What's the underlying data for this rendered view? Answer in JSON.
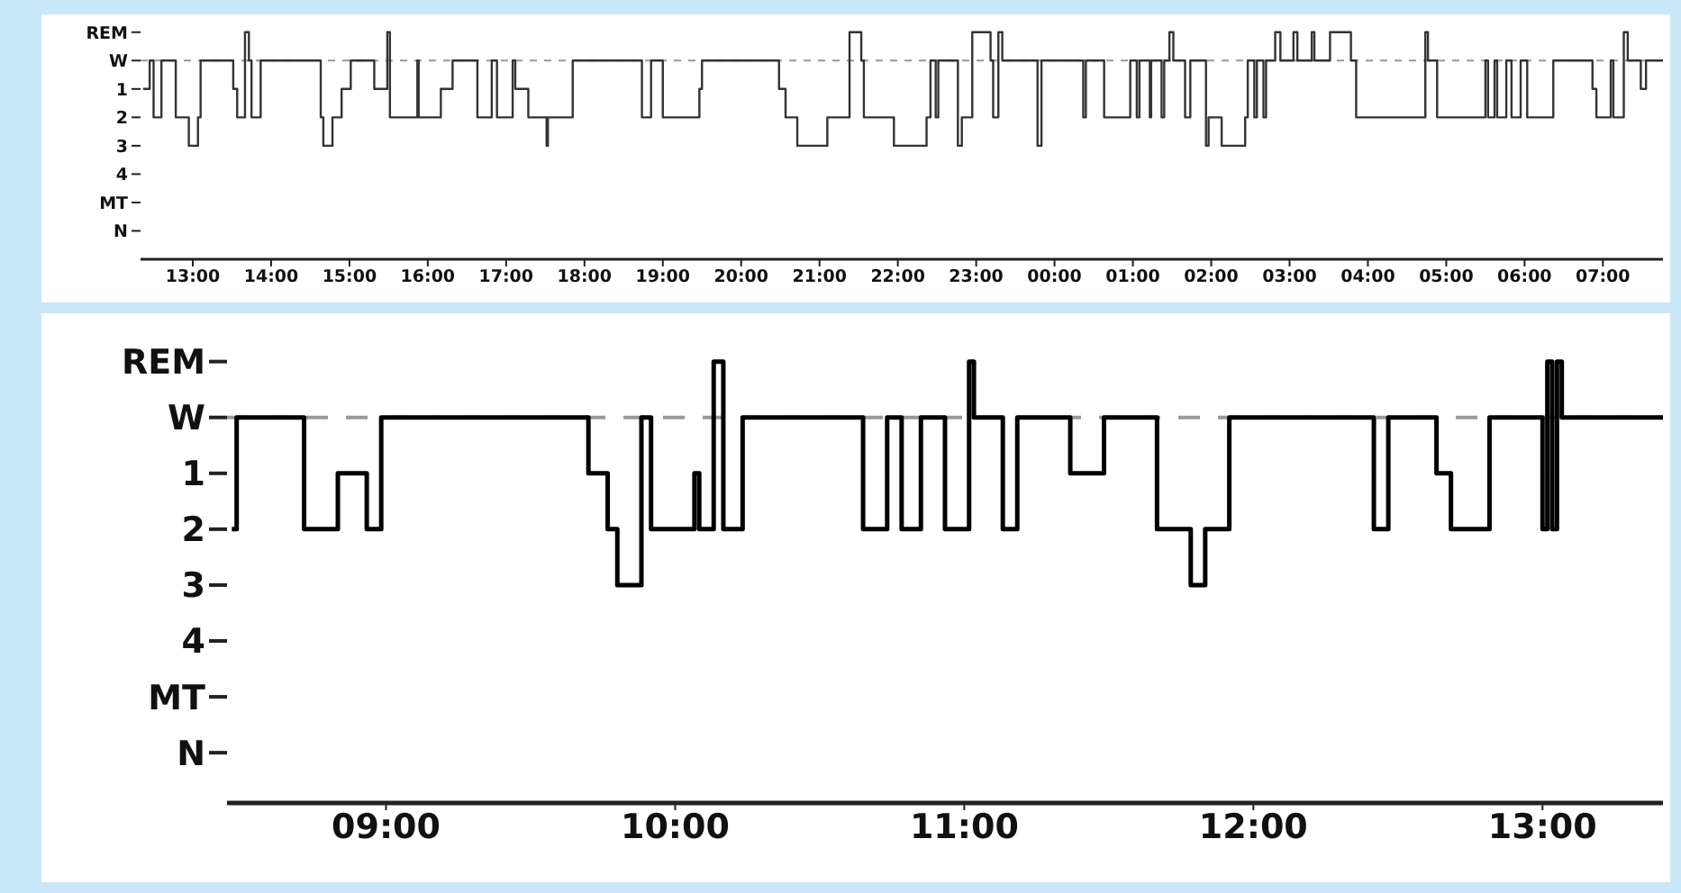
{
  "chart_data": [
    {
      "type": "step",
      "color": "#333333",
      "line_style": "solid",
      "marker": "none",
      "x": [
        "2000-01-01T12:22",
        "2000-01-01T12:27",
        "2000-01-01T12:30",
        "2000-01-01T12:36",
        "2000-01-01T12:47",
        "2000-01-01T12:57",
        "2000-01-01T13:04",
        "2000-01-01T13:06",
        "2000-01-01T13:31",
        "2000-01-01T13:34",
        "2000-01-01T13:40",
        "2000-01-01T13:43",
        "2000-01-01T13:45",
        "2000-01-01T13:52",
        "2000-01-01T14:38",
        "2000-01-01T14:40",
        "2000-01-01T14:47",
        "2000-01-01T14:54",
        "2000-01-01T15:01",
        "2000-01-01T15:19",
        "2000-01-01T15:29",
        "2000-01-01T15:31",
        "2000-01-01T15:52",
        "2000-01-01T15:53",
        "2000-01-01T16:10",
        "2000-01-01T16:19",
        "2000-01-01T16:38",
        "2000-01-01T16:49",
        "2000-01-01T16:53",
        "2000-01-01T17:05",
        "2000-01-01T17:07",
        "2000-01-01T17:17",
        "2000-01-01T17:31",
        "2000-01-01T17:32",
        "2000-01-01T17:51",
        "2000-01-01T18:44",
        "2000-01-01T18:51",
        "2000-01-01T19:00",
        "2000-01-01T19:28",
        "2000-01-01T19:30",
        "2000-01-01T20:29",
        "2000-01-01T20:34",
        "2000-01-01T20:43",
        "2000-01-01T21:06",
        "2000-01-01T21:23",
        "2000-01-01T21:32",
        "2000-01-01T21:34",
        "2000-01-01T21:57",
        "2000-01-01T22:22",
        "2000-01-01T22:25",
        "2000-01-01T22:29",
        "2000-01-01T22:31",
        "2000-01-01T22:46",
        "2000-01-01T22:49",
        "2000-01-01T22:57",
        "2000-01-01T23:11",
        "2000-01-01T23:13",
        "2000-01-01T23:17",
        "2000-01-01T23:20",
        "2000-01-01T23:47",
        "2000-01-01T23:50",
        "2000-01-02T00:22",
        "2000-01-02T00:24",
        "2000-01-02T00:38",
        "2000-01-02T00:58",
        "2000-01-02T01:03",
        "2000-01-02T01:05",
        "2000-01-02T01:13",
        "2000-01-02T01:14",
        "2000-01-02T01:22",
        "2000-01-02T01:24",
        "2000-01-02T01:28",
        "2000-01-02T01:31",
        "2000-01-02T01:40",
        "2000-01-02T01:44",
        "2000-01-02T01:56",
        "2000-01-02T01:58",
        "2000-01-02T02:08",
        "2000-01-02T02:26",
        "2000-01-02T02:28",
        "2000-01-02T02:33",
        "2000-01-02T02:35",
        "2000-01-02T02:40",
        "2000-01-02T02:42",
        "2000-01-02T02:49",
        "2000-01-02T02:53",
        "2000-01-02T03:03",
        "2000-01-02T03:06",
        "2000-01-02T03:17",
        "2000-01-02T03:19",
        "2000-01-02T03:31",
        "2000-01-02T03:47",
        "2000-01-02T03:51",
        "2000-01-02T04:44",
        "2000-01-02T04:46",
        "2000-01-02T04:53",
        "2000-01-02T05:30",
        "2000-01-02T05:32",
        "2000-01-02T05:37",
        "2000-01-02T05:39",
        "2000-01-02T05:46",
        "2000-01-02T05:50",
        "2000-01-02T05:57",
        "2000-01-02T06:02",
        "2000-01-02T06:08",
        "2000-01-02T06:22",
        "2000-01-02T06:52",
        "2000-01-02T06:55",
        "2000-01-02T07:06",
        "2000-01-02T07:08",
        "2000-01-02T07:16",
        "2000-01-02T07:19",
        "2000-01-02T07:29",
        "2000-01-02T07:33",
        "2000-01-02T07:46"
      ],
      "values": [
        1,
        0,
        2,
        0,
        2,
        3,
        2,
        0,
        1,
        2,
        -1,
        0,
        2,
        0,
        2,
        3,
        2,
        1,
        0,
        1,
        -1,
        2,
        0,
        2,
        1,
        0,
        2,
        0,
        2,
        0,
        1,
        2,
        3,
        2,
        0,
        2,
        0,
        2,
        1,
        0,
        1,
        2,
        3,
        2,
        -1,
        0,
        2,
        3,
        2,
        0,
        2,
        0,
        3,
        2,
        -1,
        0,
        2,
        -1,
        0,
        3,
        0,
        2,
        0,
        2,
        0,
        2,
        0,
        2,
        0,
        2,
        0,
        -1,
        0,
        2,
        0,
        3,
        2,
        3,
        2,
        0,
        2,
        0,
        2,
        0,
        -1,
        0,
        -1,
        0,
        -1,
        0,
        -1,
        0,
        2,
        -1,
        0,
        2,
        0,
        2,
        0,
        2,
        0,
        2,
        0,
        2,
        2,
        0,
        1,
        2,
        0,
        2,
        -1,
        0,
        1,
        0,
        0
      ],
      "xlim": [
        "2000-01-01T12:20",
        "2000-01-02T07:46"
      ],
      "xticks": [
        {
          "value": "2000-01-01T13:00",
          "label": "13:00"
        },
        {
          "value": "2000-01-01T14:00",
          "label": "14:00"
        },
        {
          "value": "2000-01-01T15:00",
          "label": "15:00"
        },
        {
          "value": "2000-01-01T16:00",
          "label": "16:00"
        },
        {
          "value": "2000-01-01T17:00",
          "label": "17:00"
        },
        {
          "value": "2000-01-01T18:00",
          "label": "18:00"
        },
        {
          "value": "2000-01-01T19:00",
          "label": "19:00"
        },
        {
          "value": "2000-01-01T20:00",
          "label": "20:00"
        },
        {
          "value": "2000-01-01T21:00",
          "label": "21:00"
        },
        {
          "value": "2000-01-01T22:00",
          "label": "22:00"
        },
        {
          "value": "2000-01-01T23:00",
          "label": "23:00"
        },
        {
          "value": "2000-01-02T00:00",
          "label": "00:00"
        },
        {
          "value": "2000-01-02T01:00",
          "label": "01:00"
        },
        {
          "value": "2000-01-02T02:00",
          "label": "02:00"
        },
        {
          "value": "2000-01-02T03:00",
          "label": "03:00"
        },
        {
          "value": "2000-01-02T04:00",
          "label": "04:00"
        },
        {
          "value": "2000-01-02T05:00",
          "label": "05:00"
        },
        {
          "value": "2000-01-02T06:00",
          "label": "06:00"
        },
        {
          "value": "2000-01-02T07:00",
          "label": "07:00"
        }
      ],
      "ylim": [
        7,
        -1.5
      ],
      "yticks": [
        {
          "value": -1,
          "label": "REM"
        },
        {
          "value": 0,
          "label": "W"
        },
        1,
        2,
        3,
        4,
        {
          "value": 5,
          "label": "MT"
        },
        {
          "value": 6,
          "label": "N"
        }
      ],
      "ref_lines": [
        {
          "axis": "y",
          "value": 0,
          "color": "#999999",
          "line_style": "dashed"
        }
      ],
      "grid": false,
      "legend": false
    },
    {
      "type": "step",
      "color": "#000000",
      "line_style": "solid",
      "marker": "none",
      "x": [
        "2000-01-01T08:28",
        "2000-01-01T08:29",
        "2000-01-01T08:43",
        "2000-01-01T08:50",
        "2000-01-01T08:56",
        "2000-01-01T08:59",
        "2000-01-01T09:42",
        "2000-01-01T09:46",
        "2000-01-01T09:48",
        "2000-01-01T09:53",
        "2000-01-01T09:55",
        "2000-01-01T10:04",
        "2000-01-01T10:05",
        "2000-01-01T10:08",
        "2000-01-01T10:10",
        "2000-01-01T10:14",
        "2000-01-01T10:39",
        "2000-01-01T10:44",
        "2000-01-01T10:47",
        "2000-01-01T10:51",
        "2000-01-01T10:56",
        "2000-01-01T11:01",
        "2000-01-01T11:02",
        "2000-01-01T11:08",
        "2000-01-01T11:11",
        "2000-01-01T11:22",
        "2000-01-01T11:29",
        "2000-01-01T11:40",
        "2000-01-01T11:47",
        "2000-01-01T11:50",
        "2000-01-01T11:55",
        "2000-01-01T12:25",
        "2000-01-01T12:28",
        "2000-01-01T12:38",
        "2000-01-01T12:41",
        "2000-01-01T12:49",
        "2000-01-01T13:00",
        "2000-01-01T13:01",
        "2000-01-01T13:02",
        "2000-01-01T13:03",
        "2000-01-01T13:04",
        "2000-01-01T13:25"
      ],
      "values": [
        2,
        0,
        2,
        1,
        2,
        0,
        1,
        2,
        3,
        0,
        2,
        1,
        2,
        -1,
        2,
        0,
        2,
        0,
        2,
        0,
        2,
        -1,
        0,
        2,
        0,
        1,
        0,
        2,
        3,
        2,
        0,
        2,
        0,
        1,
        2,
        0,
        2,
        -1,
        2,
        -1,
        0,
        0
      ],
      "xlim": [
        "2000-01-01T08:27",
        "2000-01-01T13:25"
      ],
      "xticks": [
        {
          "value": "2000-01-01T09:00",
          "label": "09:00"
        },
        {
          "value": "2000-01-01T10:00",
          "label": "10:00"
        },
        {
          "value": "2000-01-01T11:00",
          "label": "11:00"
        },
        {
          "value": "2000-01-01T12:00",
          "label": "12:00"
        },
        {
          "value": "2000-01-01T13:00",
          "label": "13:00"
        }
      ],
      "ylim": [
        6.9,
        -1.8
      ],
      "yticks": [
        {
          "value": -1,
          "label": "REM"
        },
        {
          "value": 0,
          "label": "W"
        },
        1,
        2,
        3,
        4,
        {
          "value": 5,
          "label": "MT"
        },
        {
          "value": 6,
          "label": "N"
        }
      ],
      "ref_lines": [
        {
          "axis": "y",
          "value": 0,
          "color": "#999999",
          "line_style": "dashed"
        }
      ],
      "grid": false,
      "legend": false
    }
  ]
}
